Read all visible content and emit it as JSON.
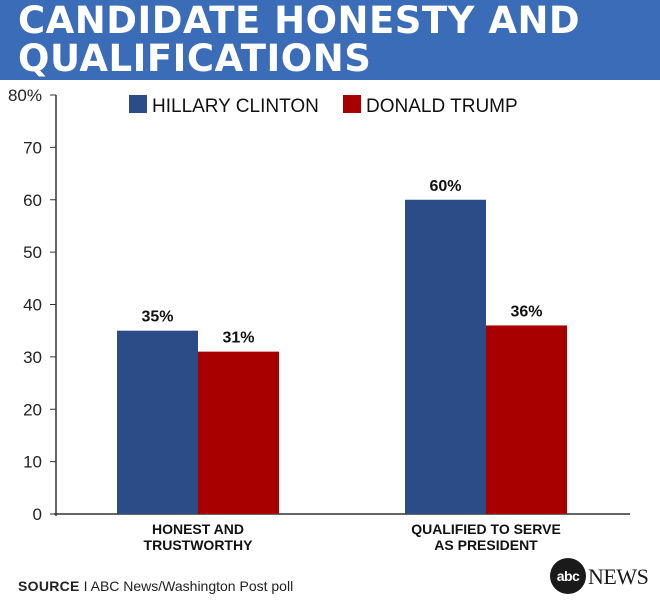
{
  "header": {
    "title": "CANDIDATE HONESTY AND\nQUALIFICATIONS"
  },
  "chart_data": {
    "type": "bar",
    "title": "CANDIDATE HONESTY AND QUALIFICATIONS",
    "categories": [
      "HONEST AND\nTRUSTWORTHY",
      "QUALIFIED TO SERVE\nAS PRESIDENT"
    ],
    "series": [
      {
        "name": "HILLARY CLINTON",
        "values": [
          35,
          60
        ],
        "labels": [
          "35%",
          "60%"
        ],
        "color": "#2b4c86"
      },
      {
        "name": "DONALD TRUMP",
        "values": [
          31,
          36
        ],
        "labels": [
          "31%",
          "36%"
        ],
        "color": "#a80000"
      }
    ],
    "ylim": [
      0,
      80
    ],
    "yticks": [
      0,
      10,
      20,
      30,
      40,
      50,
      60,
      70,
      80
    ],
    "ytick_labels": [
      "0",
      "10",
      "20",
      "30",
      "40",
      "50",
      "60",
      "70",
      "80%"
    ],
    "xlabel": "",
    "ylabel": "",
    "grid": false,
    "legend_placement": "top"
  },
  "footer": {
    "source_label": "SOURCE",
    "separator": "I",
    "source_text": "ABC News/Washington Post poll",
    "logo_mark": "abc",
    "logo_text": "NEWS"
  }
}
